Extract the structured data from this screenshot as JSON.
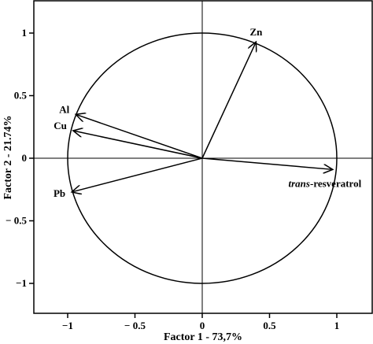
{
  "chart_data": {
    "type": "scatter",
    "subtype": "pca-loading-plot",
    "xlabel": "Factor 1 - 73,7%",
    "ylabel": "Factor 2 - 21.74%",
    "xlim": [
      -1.25,
      1.25
    ],
    "ylim": [
      -1.25,
      1.25
    ],
    "x_ticks": [
      -1,
      -0.5,
      0,
      0.5,
      1
    ],
    "x_tick_labels": [
      "−1",
      "− 0.5",
      "0",
      "0.5",
      "1"
    ],
    "y_ticks": [
      1,
      0.5,
      0,
      -0.5,
      -1
    ],
    "y_tick_labels": [
      "1",
      "0.5",
      "0",
      "− 0.5",
      "−1"
    ],
    "unit_circle": true,
    "center_lines": true,
    "grid": false,
    "vectors": [
      {
        "name": "Zn",
        "x": 0.4,
        "y": 0.93
      },
      {
        "name": "Al",
        "x": -0.94,
        "y": 0.35
      },
      {
        "name": "Cu",
        "x": -0.96,
        "y": 0.22
      },
      {
        "name": "Pb",
        "x": -0.97,
        "y": -0.27
      },
      {
        "name": "trans-resveratrol",
        "name_italic_part": "trans",
        "name_rest": "-resveratrol",
        "x": 0.97,
        "y": -0.09
      }
    ],
    "colors": {
      "lines": "#000000",
      "background": "#ffffff"
    }
  }
}
